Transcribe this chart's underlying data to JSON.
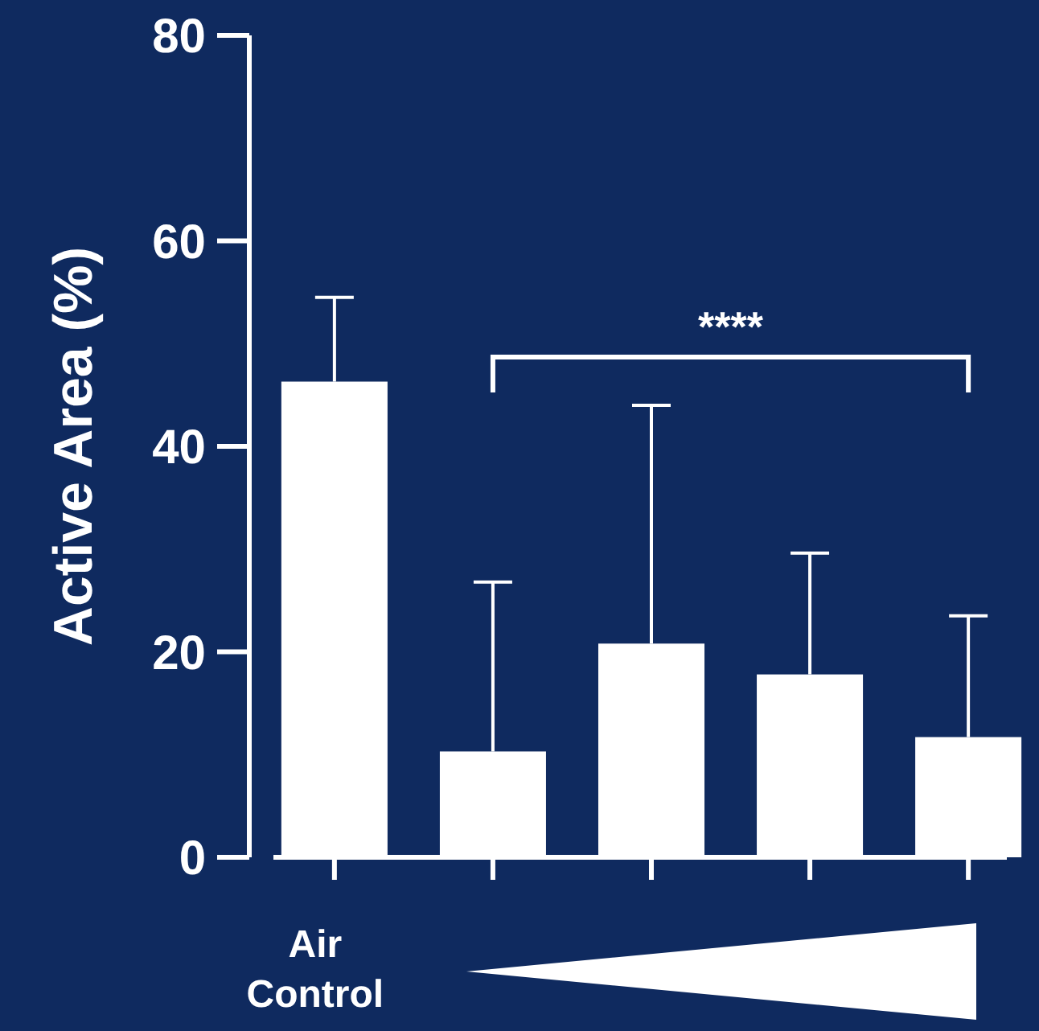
{
  "chart_data": {
    "type": "bar",
    "ylabel": "Active Area (%)",
    "categories": [
      "Air Control",
      null,
      null,
      null,
      null
    ],
    "values": [
      46.3,
      10.3,
      20.8,
      17.8,
      11.7
    ],
    "errors": [
      [
        46.3,
        54.5
      ],
      [
        10.3,
        26.8
      ],
      [
        20.8,
        44.0
      ],
      [
        17.8,
        29.6
      ],
      [
        11.7,
        23.5
      ]
    ],
    "color": "#ffffff",
    "ylim": [
      0,
      80
    ],
    "yticks": [
      0,
      20,
      40,
      60,
      80
    ],
    "grid": false,
    "annotations": [
      "****"
    ]
  }
}
